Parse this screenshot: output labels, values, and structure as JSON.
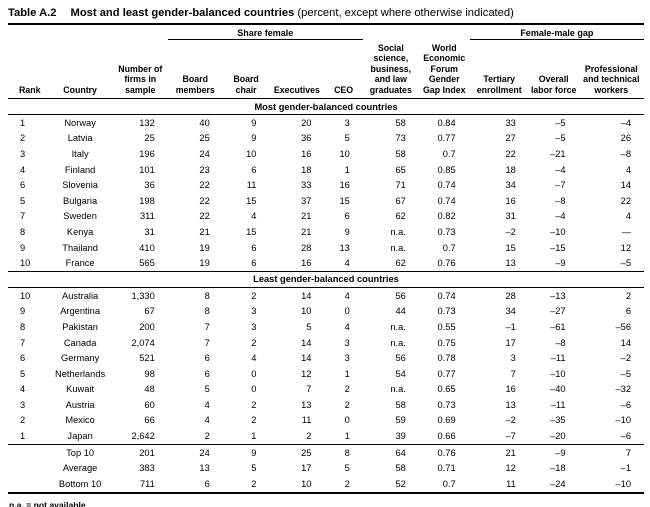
{
  "title": {
    "label": "Table A.2",
    "heading": "Most and least gender-balanced countries",
    "subtitle": " (percent, except where otherwise indicated)"
  },
  "header": {
    "groups": [
      {
        "label": "Share female"
      },
      {
        "label": "Female-male gap"
      }
    ],
    "columns": [
      "Rank",
      "Country",
      "Number of firms in sample",
      "Board members",
      "Board chair",
      "Executives",
      "CEO",
      "Social science, business, and law graduates",
      "World Economic Forum Gender Gap Index",
      "Tertiary enrollment",
      "Overall labor force",
      "Professional and technical workers"
    ]
  },
  "sections": [
    {
      "label": "Most gender-balanced countries",
      "rows": [
        [
          "1",
          "Norway",
          "132",
          "40",
          "9",
          "20",
          "3",
          "58",
          "0.84",
          "33",
          "–5",
          "–4"
        ],
        [
          "2",
          "Latvia",
          "25",
          "25",
          "9",
          "36",
          "5",
          "73",
          "0.77",
          "27",
          "–5",
          "26"
        ],
        [
          "3",
          "Italy",
          "196",
          "24",
          "10",
          "16",
          "10",
          "58",
          "0.7",
          "22",
          "–21",
          "–8"
        ],
        [
          "4",
          "Finland",
          "101",
          "23",
          "6",
          "18",
          "1",
          "65",
          "0.85",
          "18",
          "–4",
          "4"
        ],
        [
          "6",
          "Slovenia",
          "36",
          "22",
          "11",
          "33",
          "16",
          "71",
          "0.74",
          "34",
          "–7",
          "14"
        ],
        [
          "5",
          "Bulgaria",
          "198",
          "22",
          "15",
          "37",
          "15",
          "67",
          "0.74",
          "16",
          "–8",
          "22"
        ],
        [
          "7",
          "Sweden",
          "311",
          "22",
          "4",
          "21",
          "6",
          "62",
          "0.82",
          "31",
          "–4",
          "4"
        ],
        [
          "8",
          "Kenya",
          "31",
          "21",
          "15",
          "21",
          "9",
          "n.a.",
          "0.73",
          "–2",
          "–10",
          "—"
        ],
        [
          "9",
          "Thailand",
          "410",
          "19",
          "6",
          "28",
          "13",
          "n.a.",
          "0.7",
          "15",
          "–15",
          "12"
        ],
        [
          "10",
          "France",
          "565",
          "19",
          "6",
          "16",
          "4",
          "62",
          "0.76",
          "13",
          "–9",
          "–5"
        ]
      ]
    },
    {
      "label": "Least gender-balanced countries",
      "rows": [
        [
          "10",
          "Australia",
          "1,330",
          "8",
          "2",
          "14",
          "4",
          "56",
          "0.74",
          "28",
          "–13",
          "2"
        ],
        [
          "9",
          "Argentina",
          "67",
          "8",
          "3",
          "10",
          "0",
          "44",
          "0.73",
          "34",
          "–27",
          "6"
        ],
        [
          "8",
          "Pakistan",
          "200",
          "7",
          "3",
          "5",
          "4",
          "n.a.",
          "0.55",
          "–1",
          "–61",
          "–56"
        ],
        [
          "7",
          "Canada",
          "2,074",
          "7",
          "2",
          "14",
          "3",
          "n.a.",
          "0.75",
          "17",
          "–8",
          "14"
        ],
        [
          "6",
          "Germany",
          "521",
          "6",
          "4",
          "14",
          "3",
          "56",
          "0.78",
          "3",
          "–11",
          "–2"
        ],
        [
          "5",
          "Netherlands",
          "98",
          "6",
          "0",
          "12",
          "1",
          "54",
          "0.77",
          "7",
          "–10",
          "–5"
        ],
        [
          "4",
          "Kuwait",
          "48",
          "5",
          "0",
          "7",
          "2",
          "n.a.",
          "0.65",
          "16",
          "–40",
          "–32"
        ],
        [
          "3",
          "Austria",
          "60",
          "4",
          "2",
          "13",
          "2",
          "58",
          "0.73",
          "13",
          "–11",
          "–6"
        ],
        [
          "2",
          "Mexico",
          "66",
          "4",
          "2",
          "11",
          "0",
          "59",
          "0.69",
          "–2",
          "–35",
          "–10"
        ],
        [
          "1",
          "Japan",
          "2,642",
          "2",
          "1",
          "2",
          "1",
          "39",
          "0.66",
          "–7",
          "–20",
          "–6"
        ]
      ]
    }
  ],
  "summary_rows": [
    [
      "",
      "Top 10",
      "201",
      "24",
      "9",
      "25",
      "8",
      "64",
      "0.76",
      "21",
      "–9",
      "7"
    ],
    [
      "",
      "Average",
      "383",
      "13",
      "5",
      "17",
      "5",
      "58",
      "0.71",
      "12",
      "–18",
      "–1"
    ],
    [
      "",
      "Bottom 10",
      "711",
      "6",
      "2",
      "10",
      "2",
      "52",
      "0.7",
      "11",
      "–24",
      "–10"
    ]
  ],
  "footnote": "n.a. = not available"
}
